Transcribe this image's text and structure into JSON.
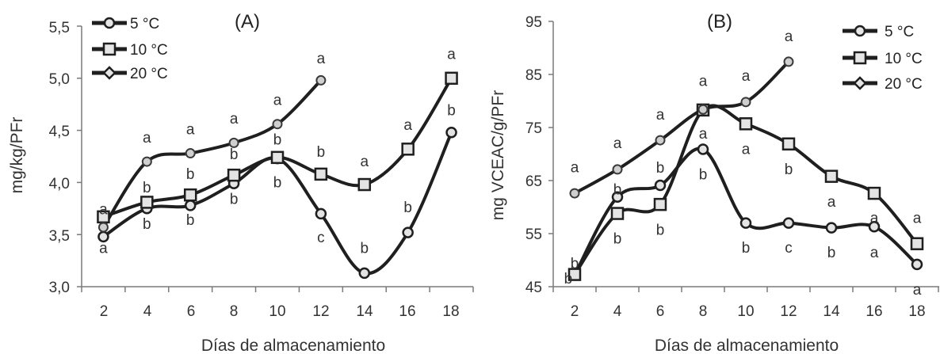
{
  "chart_data": [
    {
      "type": "line",
      "title": "(A)",
      "xlabel": "Días de almacenamiento",
      "ylabel": "mg/kg/PFr",
      "x_ticks": [
        "2",
        "4",
        "6",
        "8",
        "10",
        "12",
        "14",
        "16",
        "18"
      ],
      "y_ticks": [
        "3,0",
        "3,5",
        "4,0",
        "4,5",
        "5,0",
        "5,5"
      ],
      "ylim": [
        3.0,
        5.5
      ],
      "xlim": [
        1,
        19
      ],
      "legend_position": "top-left",
      "grid": false,
      "series": [
        {
          "name": "5 °C",
          "marker": "circle",
          "x": [
            2,
            4,
            6,
            8,
            10,
            12,
            14,
            16,
            18
          ],
          "y": [
            3.48,
            3.75,
            3.78,
            3.99,
            4.23,
            3.7,
            3.13,
            3.52,
            4.48
          ]
        },
        {
          "name": "10 °C",
          "marker": "square",
          "x": [
            2,
            4,
            6,
            8,
            10,
            12,
            14,
            16,
            18
          ],
          "y": [
            3.67,
            3.81,
            3.88,
            4.07,
            4.24,
            4.08,
            3.98,
            4.32,
            5.0
          ]
        },
        {
          "name": "20 °C",
          "marker": "diamond",
          "x": [
            2,
            4,
            6,
            8,
            10,
            12
          ],
          "y": [
            3.57,
            4.2,
            4.28,
            4.38,
            4.56,
            4.98
          ]
        }
      ],
      "annotations": [
        {
          "text": "a",
          "x": 2,
          "y": 3.74
        },
        {
          "text": "a",
          "x": 2,
          "y": 3.37
        },
        {
          "text": "a",
          "x": 4,
          "y": 4.43
        },
        {
          "text": "b",
          "x": 4,
          "y": 3.95
        },
        {
          "text": "b",
          "x": 4,
          "y": 3.6
        },
        {
          "text": "a",
          "x": 6,
          "y": 4.51
        },
        {
          "text": "b",
          "x": 6,
          "y": 4.08
        },
        {
          "text": "b",
          "x": 6,
          "y": 3.64
        },
        {
          "text": "a",
          "x": 8,
          "y": 4.61
        },
        {
          "text": "b",
          "x": 8,
          "y": 4.27
        },
        {
          "text": "b",
          "x": 8,
          "y": 3.84
        },
        {
          "text": "a",
          "x": 10,
          "y": 4.79
        },
        {
          "text": "b",
          "x": 10,
          "y": 4.41
        },
        {
          "text": "b",
          "x": 10,
          "y": 4.0
        },
        {
          "text": "a",
          "x": 12,
          "y": 5.19
        },
        {
          "text": "b",
          "x": 12,
          "y": 4.29
        },
        {
          "text": "c",
          "x": 12,
          "y": 3.47
        },
        {
          "text": "a",
          "x": 14,
          "y": 4.2
        },
        {
          "text": "b",
          "x": 14,
          "y": 3.37
        },
        {
          "text": "a",
          "x": 16,
          "y": 4.55
        },
        {
          "text": "b",
          "x": 16,
          "y": 3.76
        },
        {
          "text": "a",
          "x": 18,
          "y": 5.23
        },
        {
          "text": "b",
          "x": 18,
          "y": 4.69
        }
      ]
    },
    {
      "type": "line",
      "title": "(B)",
      "xlabel": "Días de almacenamiento",
      "ylabel": "mg VCEAC/g/PFr",
      "x_ticks": [
        "2",
        "4",
        "6",
        "8",
        "10",
        "12",
        "14",
        "16",
        "18"
      ],
      "y_ticks": [
        "45",
        "55",
        "65",
        "75",
        "85",
        "95"
      ],
      "ylim": [
        45,
        95
      ],
      "xlim": [
        1,
        19
      ],
      "legend_position": "top-right",
      "grid": false,
      "series": [
        {
          "name": "5 °C",
          "marker": "circle",
          "x": [
            2,
            4,
            6,
            8,
            10,
            12,
            14,
            16,
            18
          ],
          "y": [
            47.2,
            61.9,
            64.1,
            70.9,
            57.0,
            57.0,
            56.1,
            56.3,
            49.2
          ]
        },
        {
          "name": "10 °C",
          "marker": "square",
          "x": [
            2,
            4,
            6,
            8,
            10,
            12,
            14,
            16,
            18
          ],
          "y": [
            47.3,
            58.8,
            60.5,
            78.3,
            75.7,
            71.9,
            65.8,
            62.6,
            53.1
          ]
        },
        {
          "name": "20 °C",
          "marker": "diamond",
          "x": [
            2,
            4,
            6,
            8,
            10,
            12
          ],
          "y": [
            62.6,
            67.1,
            72.6,
            78.4,
            79.8,
            87.4
          ]
        }
      ],
      "annotations": [
        {
          "text": "a",
          "x": 2,
          "y": 67.5
        },
        {
          "text": "b",
          "x": 2,
          "y": 49.3
        },
        {
          "text": "b",
          "x": 1.7,
          "y": 46.5
        },
        {
          "text": "a",
          "x": 4,
          "y": 72.0
        },
        {
          "text": "b",
          "x": 4,
          "y": 63.3
        },
        {
          "text": "b",
          "x": 4,
          "y": 54.0
        },
        {
          "text": "a",
          "x": 6,
          "y": 77.4
        },
        {
          "text": "b",
          "x": 6,
          "y": 67.4
        },
        {
          "text": "b",
          "x": 6,
          "y": 55.7
        },
        {
          "text": "a",
          "x": 8,
          "y": 83.7
        },
        {
          "text": "a",
          "x": 8,
          "y": 73.8
        },
        {
          "text": "b",
          "x": 8,
          "y": 66.1
        },
        {
          "text": "a",
          "x": 10,
          "y": 84.7
        },
        {
          "text": "a",
          "x": 10,
          "y": 70.9
        },
        {
          "text": "b",
          "x": 10,
          "y": 52.3
        },
        {
          "text": "a",
          "x": 12,
          "y": 92.2
        },
        {
          "text": "b",
          "x": 12,
          "y": 67.1
        },
        {
          "text": "c",
          "x": 12,
          "y": 52.3
        },
        {
          "text": "a",
          "x": 14,
          "y": 61.0
        },
        {
          "text": "b",
          "x": 14,
          "y": 51.4
        },
        {
          "text": "a",
          "x": 16,
          "y": 57.9
        },
        {
          "text": "a",
          "x": 16,
          "y": 51.4
        },
        {
          "text": "a",
          "x": 18,
          "y": 57.9
        },
        {
          "text": "a",
          "x": 18,
          "y": 44.4
        }
      ]
    }
  ]
}
